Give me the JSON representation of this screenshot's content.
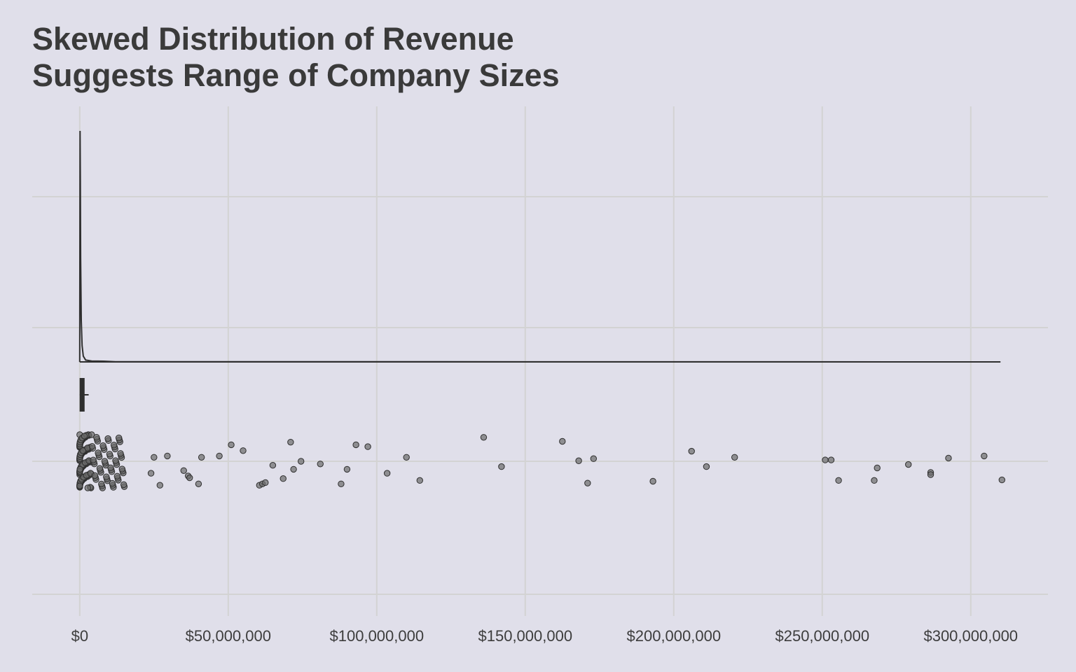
{
  "chart_data": {
    "type": "raincloud",
    "title_line1": "Skewed Distribution of Revenue",
    "title_line2": "Suggests Range of Company Sizes",
    "xlabel": "",
    "ylabel": "",
    "xlim": [
      -16000000,
      326000000
    ],
    "x_ticks": [
      0,
      50000000,
      100000000,
      150000000,
      200000000,
      250000000,
      300000000
    ],
    "x_tick_labels": [
      "$0",
      "$50,000,000",
      "$100,000,000",
      "$150,000,000",
      "$200,000,000",
      "$250,000,000",
      "$300,000,000"
    ],
    "grid": true,
    "density": {
      "x": [
        0,
        100000,
        200000,
        300000,
        500000,
        800000,
        1200000,
        2000000,
        4000000,
        8000000,
        12000000,
        310000000
      ],
      "y": [
        0,
        1.0,
        0.78,
        0.45,
        0.18,
        0.07,
        0.025,
        0.008,
        0.004,
        0.003,
        0.001,
        0
      ]
    },
    "boxplot": {
      "min": 0,
      "q1": 200000,
      "median": 600000,
      "q3": 1400000,
      "max": 3000000
    },
    "points": [
      {
        "x": 24000000,
        "j": 0.45
      },
      {
        "x": 29500000,
        "j": -0.2
      },
      {
        "x": 25000000,
        "j": -0.15
      },
      {
        "x": 27000000,
        "j": 0.9
      },
      {
        "x": 35000000,
        "j": 0.35
      },
      {
        "x": 36500000,
        "j": 0.55
      },
      {
        "x": 37000000,
        "j": 0.62
      },
      {
        "x": 40000000,
        "j": 0.85
      },
      {
        "x": 41000000,
        "j": -0.15
      },
      {
        "x": 47000000,
        "j": -0.2
      },
      {
        "x": 51000000,
        "j": -0.62
      },
      {
        "x": 55000000,
        "j": -0.4
      },
      {
        "x": 65000000,
        "j": 0.15
      },
      {
        "x": 68500000,
        "j": 0.65
      },
      {
        "x": 72000000,
        "j": 0.3
      },
      {
        "x": 71000000,
        "j": -0.72
      },
      {
        "x": 74500000,
        "j": 0.0
      },
      {
        "x": 60500000,
        "j": 0.9
      },
      {
        "x": 61500000,
        "j": 0.85
      },
      {
        "x": 62500000,
        "j": 0.8
      },
      {
        "x": 81000000,
        "j": 0.1
      },
      {
        "x": 88000000,
        "j": 0.85
      },
      {
        "x": 90000000,
        "j": 0.3
      },
      {
        "x": 93000000,
        "j": -0.62
      },
      {
        "x": 97000000,
        "j": -0.55
      },
      {
        "x": 103500000,
        "j": 0.45
      },
      {
        "x": 110000000,
        "j": -0.15
      },
      {
        "x": 114500000,
        "j": 0.72
      },
      {
        "x": 136000000,
        "j": -0.9
      },
      {
        "x": 142000000,
        "j": 0.2
      },
      {
        "x": 162500000,
        "j": -0.75
      },
      {
        "x": 168000000,
        "j": -0.02
      },
      {
        "x": 171000000,
        "j": 0.82
      },
      {
        "x": 173000000,
        "j": -0.1
      },
      {
        "x": 193000000,
        "j": 0.75
      },
      {
        "x": 206000000,
        "j": -0.38
      },
      {
        "x": 211000000,
        "j": 0.2
      },
      {
        "x": 220500000,
        "j": -0.15
      },
      {
        "x": 251000000,
        "j": -0.05
      },
      {
        "x": 253000000,
        "j": -0.05
      },
      {
        "x": 255500000,
        "j": 0.72
      },
      {
        "x": 267500000,
        "j": 0.72
      },
      {
        "x": 268500000,
        "j": 0.25
      },
      {
        "x": 279000000,
        "j": 0.12
      },
      {
        "x": 286500000,
        "j": 0.42
      },
      {
        "x": 286500000,
        "j": 0.5
      },
      {
        "x": 292500000,
        "j": -0.12
      },
      {
        "x": 304500000,
        "j": -0.2
      },
      {
        "x": 310500000,
        "j": 0.7
      }
    ],
    "colors": {
      "background": "#e0dfea",
      "grid": "#d3d3d3",
      "line": "#2f2f2f",
      "point_fill": "#6b6b6b",
      "point_stroke": "#2f2f2f",
      "text": "#3d3d3d"
    }
  }
}
